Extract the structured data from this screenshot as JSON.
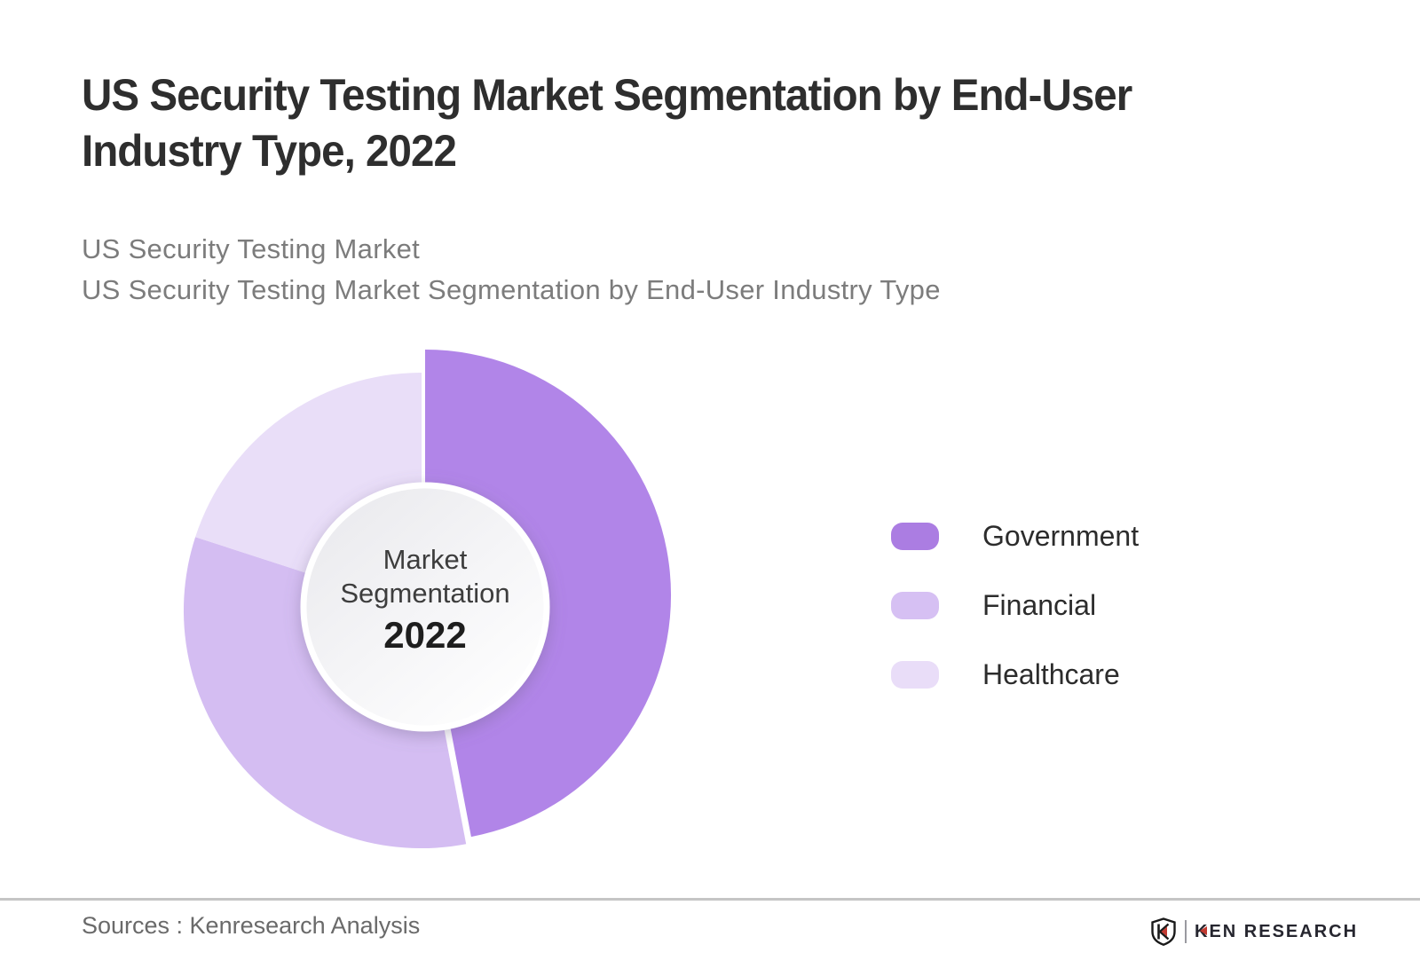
{
  "title": {
    "lines": [
      "US Security Testing Market Segmentation by End-User",
      "Industry Type, 2022"
    ]
  },
  "subtitle": {
    "lines": [
      "US Security Testing Market",
      "US Security Testing Market Segmentation by End-User Industry Type"
    ]
  },
  "donut_center": {
    "line1": "Market",
    "line2": "Segmentation",
    "year": "2022"
  },
  "legend": [
    {
      "label": "Government",
      "color": "#ab7de2"
    },
    {
      "label": "Financial",
      "color": "#d6c0f3"
    },
    {
      "label": "Healthcare",
      "color": "#e9ddf8"
    }
  ],
  "footer": {
    "source_text": "Sources : Kenresearch Analysis",
    "logo_text": "KEN RESEARCH"
  },
  "chart_data": {
    "type": "pie",
    "variant": "donut",
    "title": "US Security Testing Market Segmentation by End-User Industry Type, 2022",
    "center_label": "Market Segmentation 2022",
    "categories": [
      "Government",
      "Financial",
      "Healthcare"
    ],
    "values": [
      47,
      33,
      20
    ],
    "values_estimated_from_angles": true,
    "unit": "percent",
    "colors": [
      "#b185e8",
      "#d4bdf2",
      "#e9def8"
    ],
    "start_angle_deg": 0,
    "direction": "clockwise",
    "emphasized_slice": "Government",
    "legend_position": "right",
    "data_labels_shown": false
  }
}
